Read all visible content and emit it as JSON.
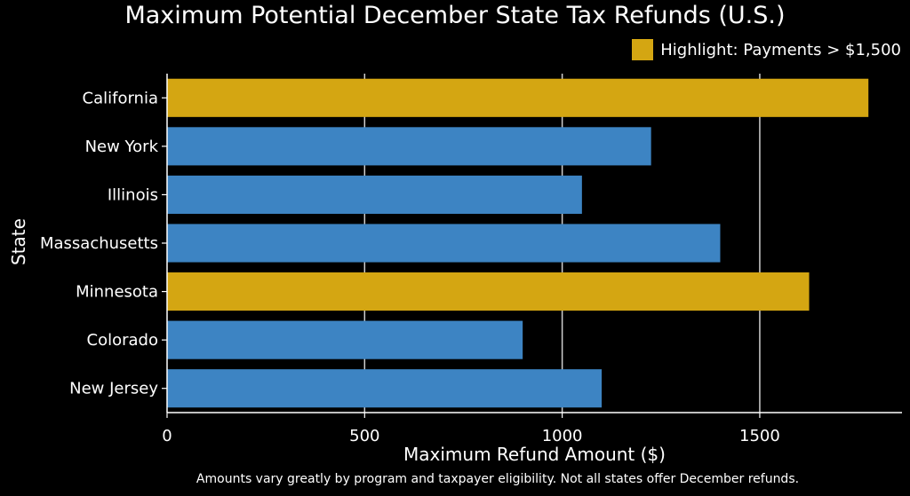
{
  "chart_data": {
    "type": "bar",
    "orientation": "horizontal",
    "title": "Maximum Potential December State Tax Refunds (U.S.)",
    "xlabel": "Maximum Refund Amount ($)",
    "ylabel": "State",
    "categories": [
      "California",
      "New York",
      "Illinois",
      "Massachusetts",
      "Minnesota",
      "Colorado",
      "New Jersey"
    ],
    "values": [
      1775,
      1225,
      1050,
      1400,
      1625,
      900,
      1100
    ],
    "highlight_threshold": 1500,
    "xlim": [
      0,
      1860
    ],
    "xticks": [
      0,
      500,
      1000,
      1500
    ],
    "grid": "vertical",
    "legend": {
      "label": "Highlight: Payments > $1,500",
      "placement": "top-right"
    },
    "colors": {
      "default": "#3d84c3",
      "highlight": "#d4a612",
      "background": "#000000"
    },
    "footnote": "Amounts vary greatly by program and taxpayer eligibility. Not all states offer December refunds."
  }
}
